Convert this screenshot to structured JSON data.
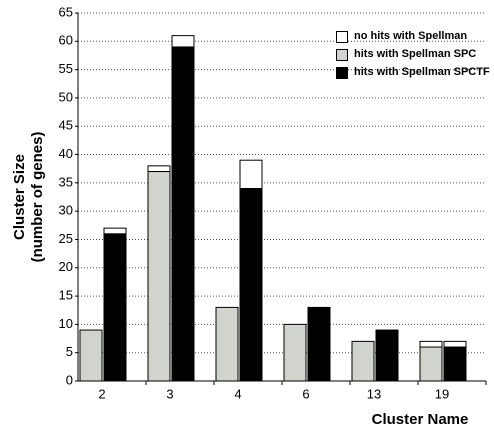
{
  "chart_data": {
    "type": "bar",
    "ylabel": [
      "Cluster Size",
      "(number of genes)"
    ],
    "xlabel": "Cluster Name",
    "categories": [
      "2",
      "3",
      "4",
      "6",
      "13",
      "19"
    ],
    "series": [
      {
        "name": "no hits with Spellman",
        "color": "#ffffff",
        "values": [
          [
            0,
            1
          ],
          [
            1,
            2
          ],
          [
            0,
            5
          ],
          [
            0,
            0
          ],
          [
            0,
            0
          ],
          [
            1,
            1
          ]
        ]
      },
      {
        "name": "hits with Spellman SPC",
        "color": "#d0d4cc",
        "values": [
          9,
          37,
          13,
          10,
          7,
          6
        ]
      },
      {
        "name": "hits with Spellman SPCTF",
        "color": "#000000",
        "values": [
          26,
          59,
          34,
          13,
          9,
          6
        ]
      }
    ],
    "ylim": [
      0,
      65
    ],
    "yticks": [
      0,
      5,
      10,
      15,
      20,
      25,
      30,
      35,
      40,
      45,
      50,
      55,
      60,
      65
    ],
    "grid": true,
    "legend": "upper right"
  }
}
